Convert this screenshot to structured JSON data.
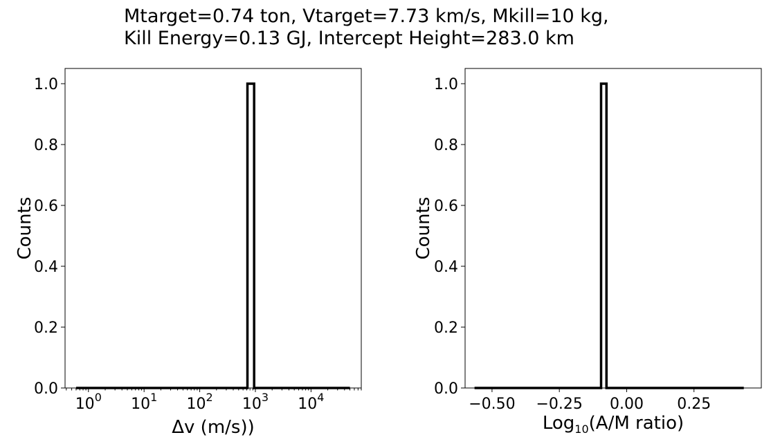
{
  "figure": {
    "title_lines": [
      "Mtarget=0.74 ton, Vtarget=7.73 km/s, Mkill=10 kg,",
      "Kill Energy=0.13 GJ, Intercept Height=283.0 km"
    ]
  },
  "chart_data": [
    {
      "type": "histogram",
      "step": true,
      "xlabel": "Δv (m/s))",
      "ylabel": "Counts",
      "xscale": "log",
      "xlim": [
        0.38,
        80000
      ],
      "ylim": [
        0,
        1.05
      ],
      "y_ticks": [
        "0.0",
        "0.2",
        "0.4",
        "0.6",
        "0.8",
        "1.0"
      ],
      "x_ticks": [
        {
          "base": "10",
          "exp": "0",
          "value": 1
        },
        {
          "base": "10",
          "exp": "1",
          "value": 10
        },
        {
          "base": "10",
          "exp": "2",
          "value": 100
        },
        {
          "base": "10",
          "exp": "3",
          "value": 1000
        },
        {
          "base": "10",
          "exp": "4",
          "value": 10000
        }
      ],
      "bins": {
        "range": [
          0.6,
          50000
        ],
        "occupied_bin": [
          720,
          950
        ],
        "count": 1
      },
      "line_color": "#000000",
      "grid": false
    },
    {
      "type": "histogram",
      "step": true,
      "xlabel_prefix": "Log",
      "xlabel_sub": "10",
      "xlabel_suffix": "(A/M ratio)",
      "ylabel": "Counts",
      "xscale": "linear",
      "xlim": [
        -0.6,
        0.5
      ],
      "ylim": [
        0,
        1.05
      ],
      "y_ticks": [
        "0.0",
        "0.2",
        "0.4",
        "0.6",
        "0.8",
        "1.0"
      ],
      "x_ticks": [
        {
          "label": "−0.50",
          "value": -0.5
        },
        {
          "label": "−0.25",
          "value": -0.25
        },
        {
          "label": "0.00",
          "value": 0.0
        },
        {
          "label": "0.25",
          "value": 0.25
        }
      ],
      "bins": {
        "range": [
          -0.565,
          0.435
        ],
        "occupied_bin": [
          -0.095,
          -0.075
        ],
        "count": 1
      },
      "line_color": "#000000",
      "grid": false
    }
  ]
}
